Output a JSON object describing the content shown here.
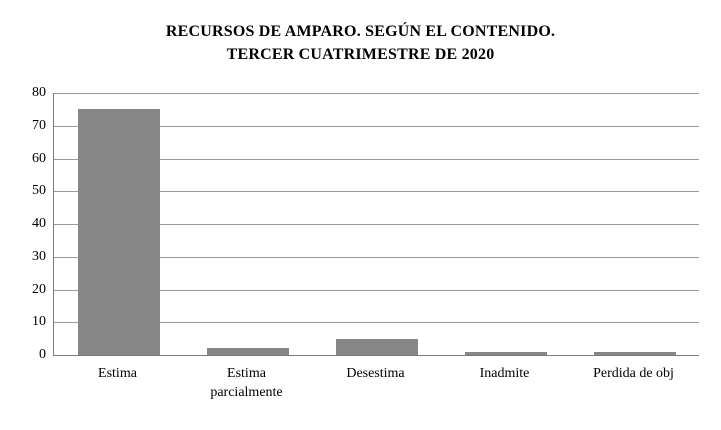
{
  "chart_data": {
    "type": "bar",
    "title": "RECURSOS DE AMPARO. SEGÚN EL CONTENIDO. TERCER CUATRIMESTRE DE 2020",
    "title_lines": [
      "RECURSOS DE AMPARO. SEGÚN EL CONTENIDO.",
      "TERCER CUATRIMESTRE DE 2020"
    ],
    "categories": [
      "Estima",
      "Estima parcialmente",
      "Desestima",
      "Inadmite",
      "Perdida de obj"
    ],
    "values": [
      75,
      2,
      5,
      1,
      1
    ],
    "xlabel": "",
    "ylabel": "",
    "ylim": [
      0,
      80
    ],
    "ytick_step": 10,
    "yticks": [
      0,
      10,
      20,
      30,
      40,
      50,
      60,
      70,
      80
    ],
    "grid": true,
    "legend": "none",
    "colors": {
      "bar_fill": "#868686",
      "gridline": "#9a9a9a",
      "axis": "#7d7d7d",
      "text": "#000000",
      "background": "#ffffff"
    }
  }
}
